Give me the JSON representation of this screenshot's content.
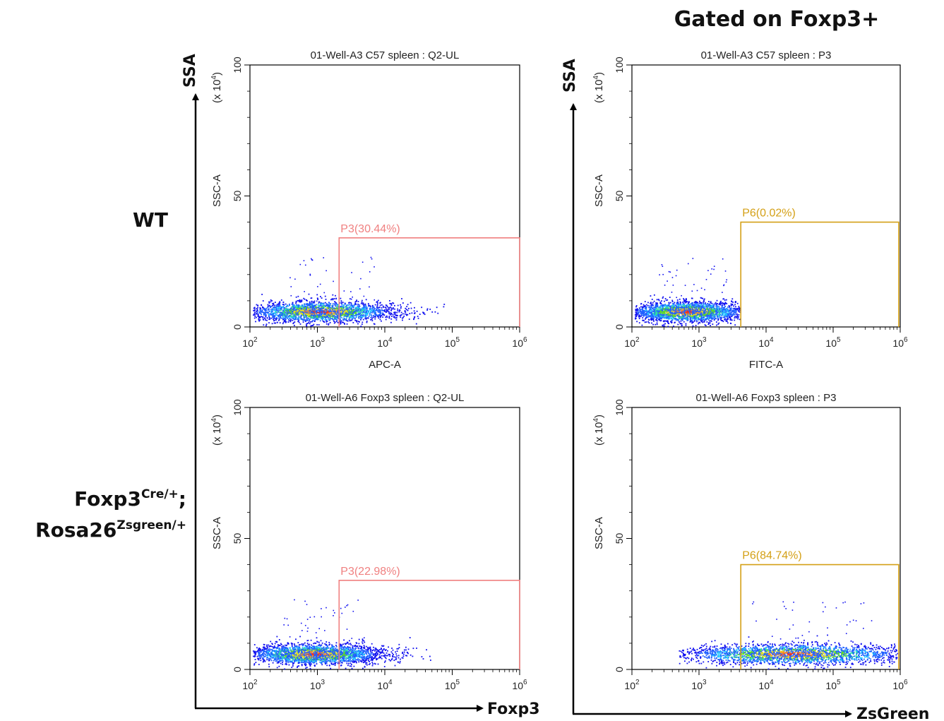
{
  "header": {
    "title": "Gated on Foxp3+"
  },
  "rows": [
    {
      "label": "WT"
    },
    {
      "label_line1_base": "Foxp3",
      "label_line1_sup": "Cre/+",
      "label_line1_tail": ";",
      "label_line2_base": "Rosa26",
      "label_line2_sup": "Zsgreen/+"
    }
  ],
  "outer_axes": [
    {
      "y_label": "SSA",
      "x_label": "Foxp3"
    },
    {
      "y_label": "SSA",
      "x_label": "ZsGreen"
    }
  ],
  "colors": {
    "gate_pink": "#f08080",
    "gate_gold": "#d4a017",
    "axis": "#000000"
  },
  "chart_data": [
    {
      "type": "scatter",
      "title": "01-Well-A3 C57 spleen : Q2-UL",
      "xlabel": "APC-A",
      "ylabel": "SSC-A",
      "y_unit": "(x 10",
      "y_unit_sup": "4",
      "y_unit_close": ")",
      "xscale": "log",
      "xlim": [
        100,
        1000000
      ],
      "ylim": [
        0,
        100
      ],
      "xticks": [
        {
          "base": "10",
          "exp": "2"
        },
        {
          "base": "10",
          "exp": "3"
        },
        {
          "base": "10",
          "exp": "4"
        },
        {
          "base": "10",
          "exp": "5"
        },
        {
          "base": "10",
          "exp": "6"
        }
      ],
      "yticks": [
        "0",
        "50",
        "100"
      ],
      "gate": {
        "name": "P3(30.44%)",
        "x_min": 2100,
        "x_max": 1000000,
        "y_min": 0,
        "y_max": 34,
        "color": "#f08080"
      },
      "population": {
        "x_center": 1100,
        "y_center": 6,
        "x_min": 110,
        "x_max": 80000
      }
    },
    {
      "type": "scatter",
      "title": "01-Well-A3 C57 spleen : P3",
      "xlabel": "FITC-A",
      "ylabel": "SSC-A",
      "y_unit": "(x 10",
      "y_unit_sup": "4",
      "y_unit_close": ")",
      "xscale": "log",
      "xlim": [
        100,
        1000000
      ],
      "ylim": [
        0,
        100
      ],
      "xticks": [
        {
          "base": "10",
          "exp": "2"
        },
        {
          "base": "10",
          "exp": "3"
        },
        {
          "base": "10",
          "exp": "4"
        },
        {
          "base": "10",
          "exp": "5"
        },
        {
          "base": "10",
          "exp": "6"
        }
      ],
      "yticks": [
        "0",
        "50",
        "100"
      ],
      "gate": {
        "name": "P6(0.02%)",
        "x_min": 4200,
        "x_max": 950000,
        "y_min": 0,
        "y_max": 40,
        "color": "#d4a017"
      },
      "population": {
        "x_center": 650,
        "y_center": 6,
        "x_min": 110,
        "x_max": 4000
      }
    },
    {
      "type": "scatter",
      "title": "01-Well-A6 Foxp3 spleen : Q2-UL",
      "xlabel": "",
      "ylabel": "SSC-A",
      "y_unit": "(x 10",
      "y_unit_sup": "4",
      "y_unit_close": ")",
      "xscale": "log",
      "xlim": [
        100,
        1000000
      ],
      "ylim": [
        0,
        100
      ],
      "xticks": [
        {
          "base": "10",
          "exp": "2"
        },
        {
          "base": "10",
          "exp": "3"
        },
        {
          "base": "10",
          "exp": "4"
        },
        {
          "base": "10",
          "exp": "5"
        },
        {
          "base": "10",
          "exp": "6"
        }
      ],
      "yticks": [
        "0",
        "50",
        "100"
      ],
      "gate": {
        "name": "P3(22.98%)",
        "x_min": 2100,
        "x_max": 1000000,
        "y_min": 0,
        "y_max": 34,
        "color": "#f08080"
      },
      "population": {
        "x_center": 900,
        "y_center": 6,
        "x_min": 110,
        "x_max": 70000
      }
    },
    {
      "type": "scatter",
      "title": "01-Well-A6 Foxp3 spleen : P3",
      "xlabel": "",
      "ylabel": "SSC-A",
      "y_unit": "(x 10",
      "y_unit_sup": "4",
      "y_unit_close": ")",
      "xscale": "log",
      "xlim": [
        100,
        1000000
      ],
      "ylim": [
        0,
        100
      ],
      "xticks": [
        {
          "base": "10",
          "exp": "2"
        },
        {
          "base": "10",
          "exp": "3"
        },
        {
          "base": "10",
          "exp": "4"
        },
        {
          "base": "10",
          "exp": "5"
        },
        {
          "base": "10",
          "exp": "6"
        }
      ],
      "yticks": [
        "0",
        "50",
        "100"
      ],
      "gate": {
        "name": "P6(84.74%)",
        "x_min": 4200,
        "x_max": 950000,
        "y_min": 0,
        "y_max": 40,
        "color": "#d4a017"
      },
      "population": {
        "x_center": 25000,
        "y_center": 6,
        "x_min": 500,
        "x_max": 900000
      }
    }
  ]
}
